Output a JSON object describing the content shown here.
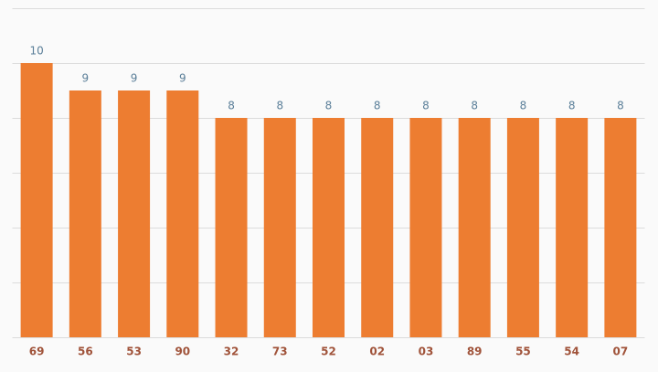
{
  "chart_data": {
    "type": "bar",
    "categories": [
      "69",
      "56",
      "53",
      "90",
      "32",
      "73",
      "52",
      "02",
      "03",
      "89",
      "55",
      "54",
      "07"
    ],
    "values": [
      10,
      9,
      9,
      9,
      8,
      8,
      8,
      8,
      8,
      8,
      8,
      8,
      8
    ],
    "color": "#ed7d31",
    "ylim": [
      0,
      12
    ],
    "yticks": [
      0,
      2,
      4,
      6,
      8,
      10,
      12
    ],
    "grid": true
  }
}
